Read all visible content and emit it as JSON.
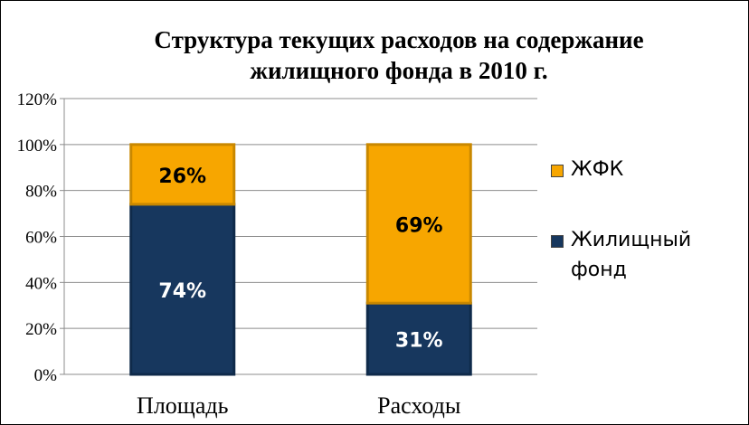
{
  "chart_data": {
    "type": "bar",
    "stacked": true,
    "title": [
      "Структура текущих расходов на содержание",
      "жилищного фонда в 2010 г."
    ],
    "categories": [
      "Площадь",
      "Расходы"
    ],
    "series": [
      {
        "name": "Жилищный фонд",
        "values": [
          74,
          31
        ],
        "labels": [
          "74%",
          "31%"
        ],
        "color": "#17375e",
        "label_color": "#ffffff"
      },
      {
        "name": "ЖФК",
        "values": [
          26,
          69
        ],
        "labels": [
          "26%",
          "69%"
        ],
        "color": "#f7a600",
        "label_color": "#000000"
      }
    ],
    "ylim": [
      0,
      120
    ],
    "yticks": [
      0,
      20,
      40,
      60,
      80,
      100,
      120
    ],
    "ytick_labels": [
      "0%",
      "20%",
      "40%",
      "60%",
      "80%",
      "100%",
      "120%"
    ],
    "grid": true,
    "legend": {
      "placement": "right",
      "items": [
        "ЖФК",
        "Жилищный фонд"
      ]
    },
    "legend_display": {
      "item1": "ЖФК",
      "item2_line1": "Жилищный",
      "item2_line2": "фонд"
    }
  }
}
